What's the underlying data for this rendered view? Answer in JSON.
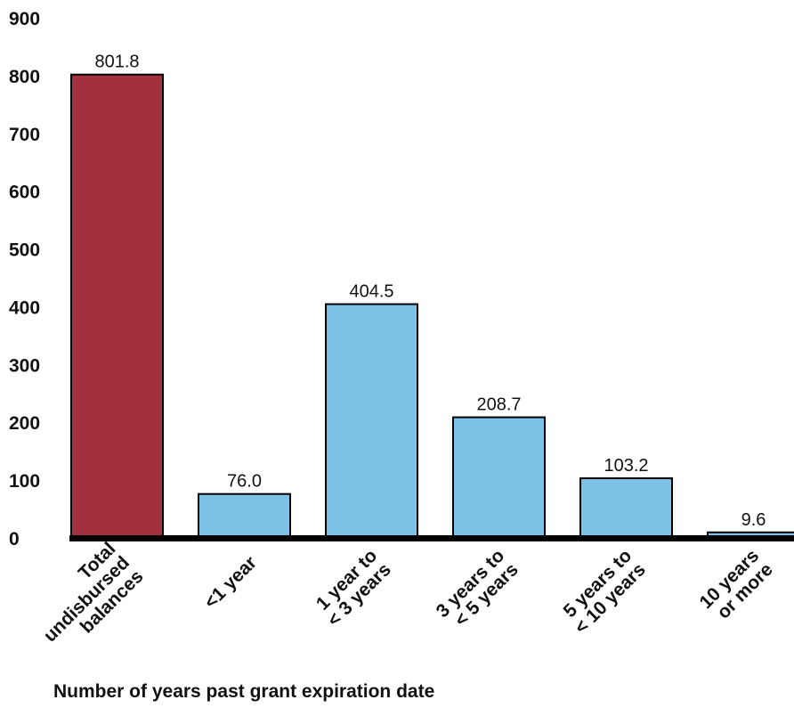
{
  "chart_data": {
    "type": "bar",
    "title": "",
    "xlabel": "Number of years past grant expiration date",
    "ylabel": "",
    "ylim": [
      0,
      900
    ],
    "yticks": [
      0,
      100,
      200,
      300,
      400,
      500,
      600,
      700,
      800,
      900
    ],
    "grid": false,
    "legend": "none",
    "categories": [
      [
        "Total",
        "undisbursed",
        "balances"
      ],
      [
        "<1 year"
      ],
      [
        "1 year to",
        "< 3 years"
      ],
      [
        "3 years to",
        "< 5 years"
      ],
      [
        "5 years to",
        "< 10 years"
      ],
      [
        "10 years",
        "or more"
      ]
    ],
    "values": [
      801.8,
      76.0,
      404.5,
      208.7,
      103.2,
      9.6
    ],
    "value_labels": [
      "801.8",
      "76.0",
      "404.5",
      "208.7",
      "103.2",
      "9.6"
    ],
    "colors": [
      "#a3303d",
      "#7cc1e6",
      "#7cc1e6",
      "#7cc1e6",
      "#7cc1e6",
      "#7cc1e6"
    ],
    "axis_color": "#000000"
  }
}
